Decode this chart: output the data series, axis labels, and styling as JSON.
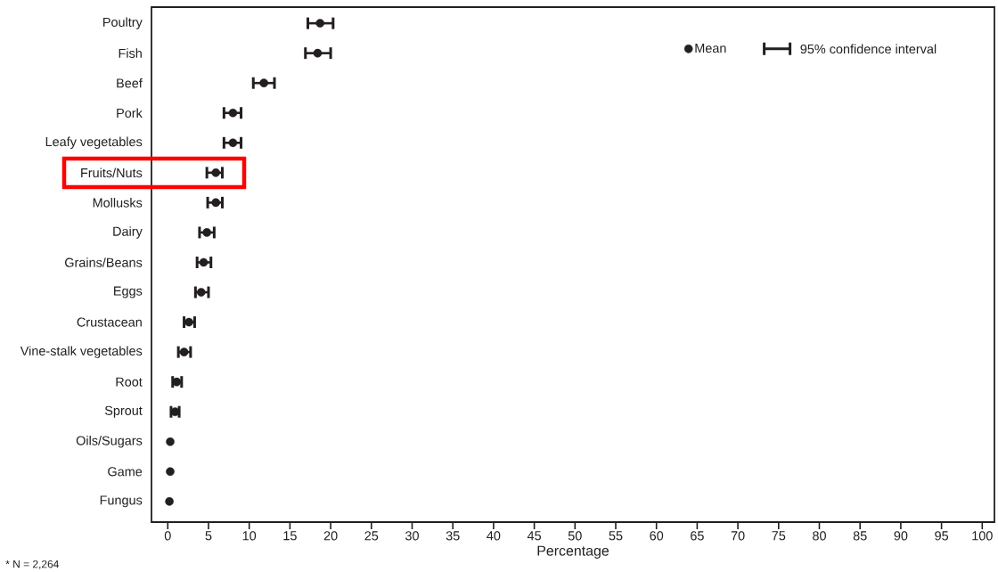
{
  "chart_data": {
    "type": "scatter",
    "orientation": "horizontal",
    "xlabel": "Percentage",
    "categories": [
      "Poultry",
      "Fish",
      "Beef",
      "Pork",
      "Leafy vegetables",
      "Fruits/Nuts",
      "Mollusks",
      "Dairy",
      "Grains/Beans",
      "Eggs",
      "Crustacean",
      "Vine-stalk vegetables",
      "Root",
      "Sprout",
      "Oils/Sugars",
      "Game",
      "Fungus"
    ],
    "series": [
      {
        "name": "Mean",
        "color": "#231f20",
        "values": [
          18.7,
          18.4,
          11.8,
          8.0,
          8.0,
          5.9,
          5.9,
          4.8,
          4.4,
          4.1,
          2.6,
          2.0,
          1.1,
          0.9,
          0.3,
          0.3,
          0.2
        ],
        "errors": [
          [
            17.2,
            20.3
          ],
          [
            16.9,
            20.0
          ],
          [
            10.5,
            13.1
          ],
          [
            6.9,
            9.0
          ],
          [
            6.9,
            9.0
          ],
          [
            4.8,
            6.7
          ],
          [
            4.9,
            6.7
          ],
          [
            3.9,
            5.7
          ],
          [
            3.6,
            5.3
          ],
          [
            3.4,
            5.0
          ],
          [
            2.0,
            3.3
          ],
          [
            1.3,
            2.8
          ],
          [
            0.6,
            1.7
          ],
          [
            0.4,
            1.4
          ],
          null,
          null,
          null
        ]
      }
    ],
    "xlim": [
      -2,
      101.5
    ],
    "xticks": [
      0,
      5,
      10,
      15,
      20,
      25,
      30,
      35,
      40,
      45,
      50,
      55,
      60,
      65,
      70,
      75,
      80,
      85,
      90,
      95,
      100
    ],
    "marker": "circle",
    "legend": "top right",
    "annotations": [
      "95% confidence interval",
      "* N = 2,264"
    ]
  }
}
